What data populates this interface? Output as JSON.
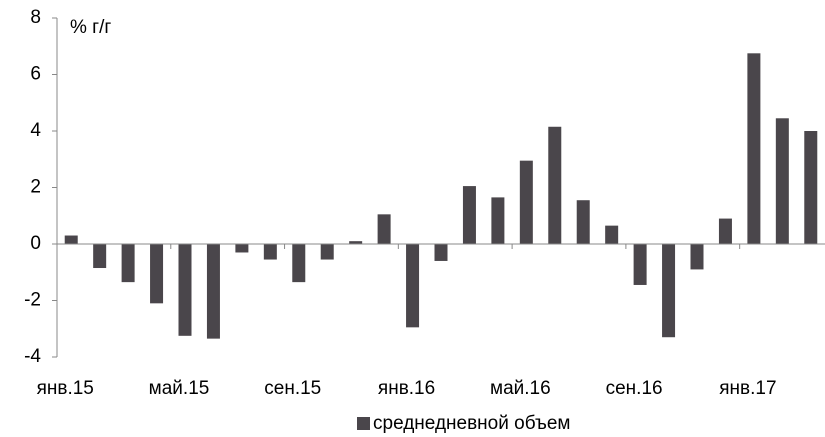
{
  "chart_data": {
    "type": "bar",
    "y_axis_label": "% г/г",
    "categories": [
      "янв.15",
      null,
      null,
      null,
      "май.15",
      null,
      null,
      null,
      "сен.15",
      null,
      null,
      null,
      "янв.16",
      null,
      null,
      null,
      "май.16",
      null,
      null,
      null,
      "сен.16",
      null,
      null,
      null,
      "янв.17",
      null,
      null
    ],
    "series": [
      {
        "name": "среднедневной объем",
        "color": "#4a464b",
        "values": [
          0.3,
          -0.85,
          -1.35,
          -2.1,
          -3.25,
          -3.35,
          -0.3,
          -0.55,
          -1.35,
          -0.55,
          0.1,
          1.05,
          -2.95,
          -0.6,
          2.05,
          1.65,
          2.95,
          4.15,
          1.55,
          0.65,
          -1.45,
          -3.3,
          -0.9,
          0.9,
          6.75,
          4.45,
          4.0
        ]
      }
    ],
    "ylim": [
      -4,
      8
    ],
    "yticks": [
      -4,
      -2,
      0,
      2,
      4,
      6,
      8
    ],
    "grid": false,
    "legend": "bottom"
  }
}
